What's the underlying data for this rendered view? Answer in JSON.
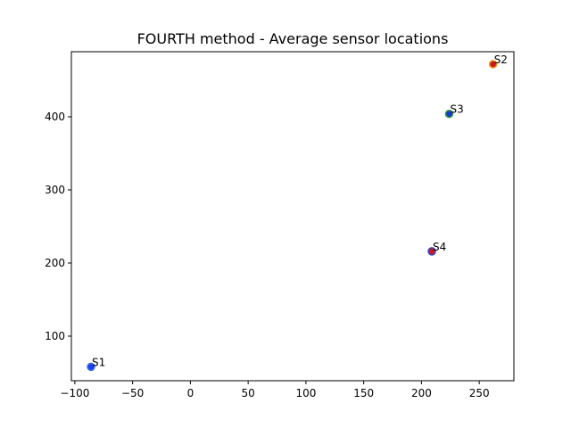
{
  "chart_data": {
    "type": "scatter",
    "title": "FOURTH method - Average sensor locations",
    "xlabel": "",
    "ylabel": "",
    "xlim": [
      -103,
      280
    ],
    "ylim": [
      39,
      489
    ],
    "grid": false,
    "x_ticks": [
      -100,
      -50,
      0,
      50,
      100,
      150,
      200,
      250
    ],
    "y_ticks": [
      100,
      200,
      300,
      400
    ],
    "points": [
      {
        "label": "S1",
        "x": -86,
        "y": 58,
        "fill": "#1f3fff",
        "edge": "#3d6fd6"
      },
      {
        "label": "S2",
        "x": 262,
        "y": 472,
        "fill": "#cc1a1a",
        "edge": "#e8901c"
      },
      {
        "label": "S3",
        "x": 224,
        "y": 404,
        "fill": "#1a3ad6",
        "edge": "#2e9a3a"
      },
      {
        "label": "S4",
        "x": 209,
        "y": 216,
        "fill": "#cc1a1a",
        "edge": "#3340c8"
      }
    ]
  }
}
